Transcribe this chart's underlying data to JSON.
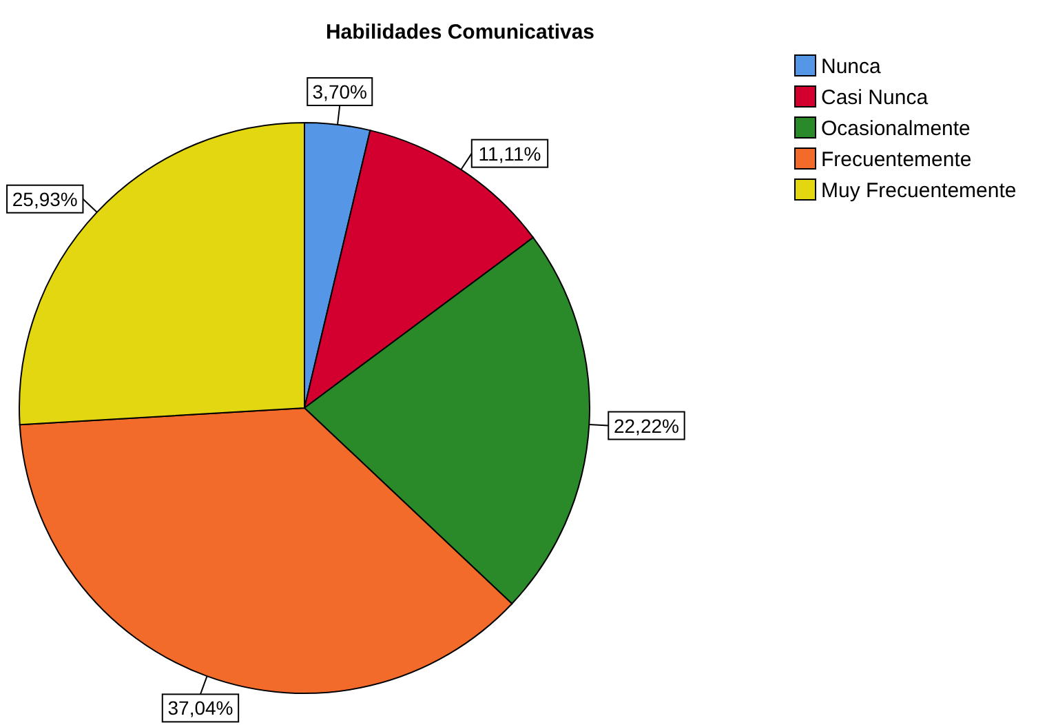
{
  "chart_data": {
    "type": "pie",
    "title": "Habilidades Comunicativas",
    "categories": [
      "Nunca",
      "Casi Nunca",
      "Ocasionalmente",
      "Frecuentemente",
      "Muy Frecuentemente"
    ],
    "values": [
      3.7,
      11.11,
      22.22,
      37.04,
      25.93
    ],
    "value_labels": [
      "3,70%",
      "11,11%",
      "22,22%",
      "37,04%",
      "25,93%"
    ],
    "colors": [
      "#5596e6",
      "#d3002f",
      "#2a8a2a",
      "#f26b2b",
      "#e3d712"
    ],
    "legend": "top right"
  }
}
